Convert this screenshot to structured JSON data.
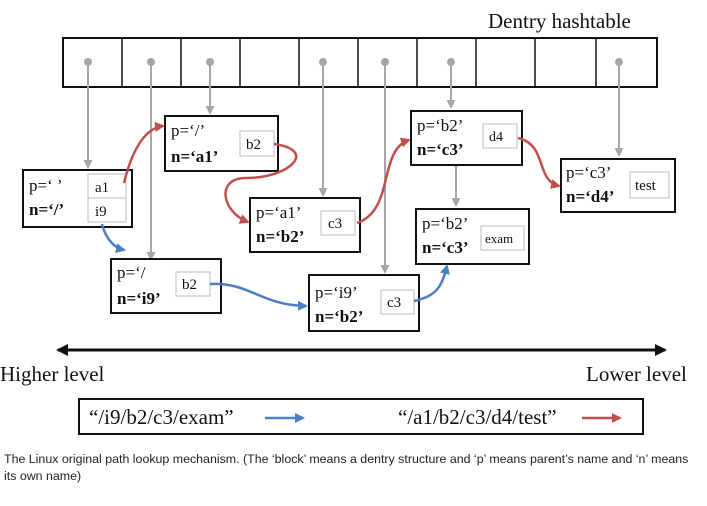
{
  "title": "Dentry hashtable",
  "colors": {
    "blue_arrow": "#4a7fc1",
    "red_arrow": "#c0504d",
    "gray_pointer": "#a6a6a6",
    "frame": "#111111"
  },
  "dentries": {
    "root": {
      "p": "p=‘ ’",
      "n": "n=‘/’",
      "entries": [
        "a1",
        "i9"
      ]
    },
    "a1": {
      "p": "p=‘/’",
      "n": "n=‘a1’",
      "entry": "b2"
    },
    "i9": {
      "p": "p=‘/",
      "n": "n=‘i9’",
      "entry": "b2"
    },
    "a1b2": {
      "p": "p=‘a1’",
      "n": "n=‘b2’",
      "entry": "c3"
    },
    "i9b2": {
      "p": "p=‘i9’",
      "n": "n=‘b2’",
      "entry": "c3"
    },
    "b2c3": {
      "p": "p=‘b2’",
      "n": "n=‘c3’",
      "entry": "d4"
    },
    "b2c3exam": {
      "p": "p=‘b2’",
      "n": "n=‘c3’",
      "entry": "exam"
    },
    "c3d4": {
      "p": "p=‘c3’",
      "n": "n=‘d4’",
      "entry": "test"
    }
  },
  "axis": {
    "left": "Higher level",
    "right": "Lower level"
  },
  "legend": {
    "blue_path": "“/i9/b2/c3/exam”",
    "red_path": "“/a1/b2/c3/d4/test”"
  },
  "caption": "The Linux original path lookup mechanism. (The ‘block’ means a dentry structure and ‘p’ means parent’s name and ‘n’ means its own name)"
}
